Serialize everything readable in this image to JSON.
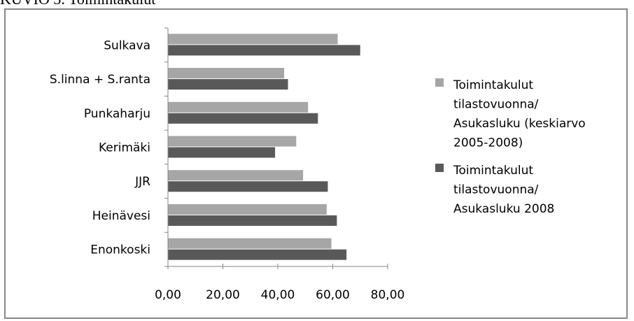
{
  "caption": "KUVIO 3. Toimintakulut",
  "colors": {
    "series_light": "#a6a6a6",
    "series_dark": "#595959",
    "axis": "#868686",
    "frame": "#888888"
  },
  "chart_data": {
    "type": "bar",
    "orientation": "horizontal",
    "categories": [
      "Enonkoski",
      "Heinävesi",
      "JJR",
      "Kerimäki",
      "Punkaharju",
      "S.linna + S.ranta",
      "Sulkava"
    ],
    "series": [
      {
        "name": "Toimintakulut tilastovuonna/ Asukasluku (keskiarvo 2005-2008)",
        "legend_lines": [
          "Toimintakulut",
          "tilastovuonna/",
          "Asukasluku (keskiarvo",
          "2005-2008)"
        ],
        "values": [
          59.5,
          57.8,
          49.2,
          46.7,
          51.0,
          42.3,
          61.8
        ]
      },
      {
        "name": "Toimintakulut tilastovuonna/ Asukasluku 2008",
        "legend_lines": [
          "Toimintakulut",
          "tilastovuonna/",
          "Asukasluku 2008"
        ],
        "values": [
          65.0,
          61.5,
          58.2,
          39.0,
          54.6,
          43.7,
          70.0
        ]
      }
    ],
    "xlim": [
      0,
      80
    ],
    "xticks": [
      "0,00",
      "20,00",
      "40,00",
      "60,00",
      "80,00"
    ],
    "grid": false,
    "legend": "right"
  }
}
